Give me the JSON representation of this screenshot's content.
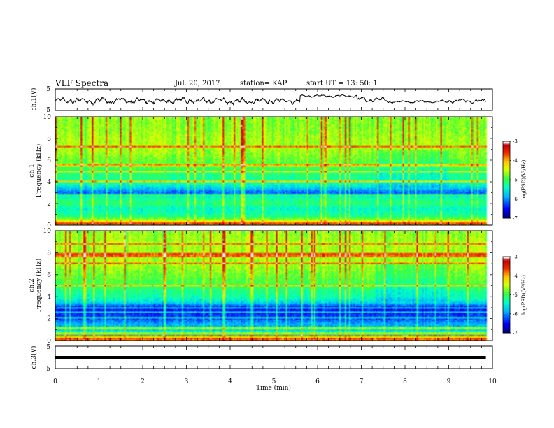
{
  "header": {
    "title": "VLF Spectra",
    "date": "Jul. 20, 2017",
    "station": "station= KAP",
    "start_time": "start UT = 13: 50: 1"
  },
  "chart_data": [
    {
      "type": "line",
      "panel": "ch1-waveform",
      "ylabel": "ch.1(V)",
      "ylim": [
        -5,
        5
      ],
      "yticks": [
        "5",
        "-5"
      ],
      "xlim": [
        0,
        10
      ],
      "x_range_data": [
        0,
        9.85
      ],
      "baseline_note": "noise",
      "segments": [
        {
          "x0": 0.0,
          "x1": 5.6,
          "mean": -0.5,
          "amp": 2.2
        },
        {
          "x0": 5.6,
          "x1": 6.9,
          "mean": 1.8,
          "amp": 0.9
        },
        {
          "x0": 6.9,
          "x1": 7.6,
          "mean": 0.0,
          "amp": 1.8
        },
        {
          "x0": 7.6,
          "x1": 9.0,
          "mean": -0.9,
          "amp": 1.0
        },
        {
          "x0": 9.0,
          "x1": 9.85,
          "mean": -0.6,
          "amp": 1.6
        }
      ],
      "color": "#000000"
    },
    {
      "type": "heatmap",
      "panel": "ch1-spectrogram",
      "ylabel_line1": "ch.1",
      "ylabel_line2": "Frequency (kHz)",
      "ylim": [
        0,
        10
      ],
      "yticks": [
        "0",
        "2",
        "4",
        "6",
        "8",
        "10"
      ],
      "xlim": [
        0,
        10
      ],
      "x_range_data": [
        0,
        9.85
      ],
      "colorbar": {
        "label": "log(PSD)(V²/Hz)",
        "range": [
          -7,
          -3
        ],
        "ticks": [
          "-3",
          "-4",
          "-5",
          "-6",
          "-7"
        ],
        "colors": [
          "#ffffff",
          "#d00000",
          "#ffb000",
          "#fff000",
          "#30ff30",
          "#00ffc0",
          "#00c0ff",
          "#0000ff",
          "#000080"
        ]
      },
      "freq_profile_log_psd": [
        {
          "f": 0.0,
          "v": -4.6
        },
        {
          "f": 0.3,
          "v": -4.2
        },
        {
          "f": 0.6,
          "v": -5.0
        },
        {
          "f": 1.0,
          "v": -5.3
        },
        {
          "f": 1.5,
          "v": -5.4
        },
        {
          "f": 2.0,
          "v": -5.1
        },
        {
          "f": 2.5,
          "v": -5.3
        },
        {
          "f": 3.0,
          "v": -6.2
        },
        {
          "f": 3.5,
          "v": -5.6
        },
        {
          "f": 4.0,
          "v": -5.2
        },
        {
          "f": 4.5,
          "v": -5.2
        },
        {
          "f": 5.0,
          "v": -5.1
        },
        {
          "f": 5.5,
          "v": -4.9
        },
        {
          "f": 6.0,
          "v": -4.8
        },
        {
          "f": 7.0,
          "v": -4.6
        },
        {
          "f": 8.0,
          "v": -4.6
        },
        {
          "f": 9.0,
          "v": -4.7
        },
        {
          "f": 10.0,
          "v": -4.7
        }
      ]
    },
    {
      "type": "heatmap",
      "panel": "ch2-spectrogram",
      "ylabel_line1": "ch.2",
      "ylabel_line2": "Frequency (kHz)",
      "ylim": [
        0,
        10
      ],
      "yticks": [
        "0",
        "2",
        "4",
        "6",
        "8",
        "10"
      ],
      "xlim": [
        0,
        10
      ],
      "x_range_data": [
        0,
        9.85
      ],
      "colorbar": {
        "label": "log(PSD)(V²/Hz)",
        "range": [
          -7,
          -3
        ],
        "ticks": [
          "-3",
          "-4",
          "-5",
          "-6",
          "-7"
        ],
        "colors": [
          "#ffffff",
          "#d00000",
          "#ffb000",
          "#fff000",
          "#30ff30",
          "#00ffc0",
          "#00c0ff",
          "#0000ff",
          "#000080"
        ]
      },
      "freq_profile_log_psd": [
        {
          "f": 0.0,
          "v": -4.6
        },
        {
          "f": 0.3,
          "v": -4.4
        },
        {
          "f": 0.6,
          "v": -5.4
        },
        {
          "f": 1.0,
          "v": -5.8
        },
        {
          "f": 1.5,
          "v": -5.9
        },
        {
          "f": 2.0,
          "v": -6.3
        },
        {
          "f": 2.5,
          "v": -6.4
        },
        {
          "f": 3.0,
          "v": -6.5
        },
        {
          "f": 3.5,
          "v": -5.6
        },
        {
          "f": 4.0,
          "v": -5.3
        },
        {
          "f": 4.5,
          "v": -5.2
        },
        {
          "f": 5.0,
          "v": -5.0
        },
        {
          "f": 5.5,
          "v": -4.9
        },
        {
          "f": 6.0,
          "v": -4.8
        },
        {
          "f": 7.0,
          "v": -4.6
        },
        {
          "f": 8.0,
          "v": -4.6
        },
        {
          "f": 9.0,
          "v": -4.6
        },
        {
          "f": 10.0,
          "v": -4.7
        }
      ]
    },
    {
      "type": "line",
      "panel": "ch3-waveform",
      "ylabel": "ch.3(V)",
      "ylim": [
        -5,
        5
      ],
      "yticks": [
        "5",
        "-5"
      ],
      "xlim": [
        0,
        10
      ],
      "x_range_data": [
        0,
        9.85
      ],
      "constant_value": 0.0,
      "color": "#000000"
    }
  ],
  "time_axis": {
    "xlabel": "Time (min)",
    "ticks": [
      "0",
      "1",
      "2",
      "3",
      "4",
      "5",
      "6",
      "7",
      "8",
      "9",
      "10"
    ]
  }
}
